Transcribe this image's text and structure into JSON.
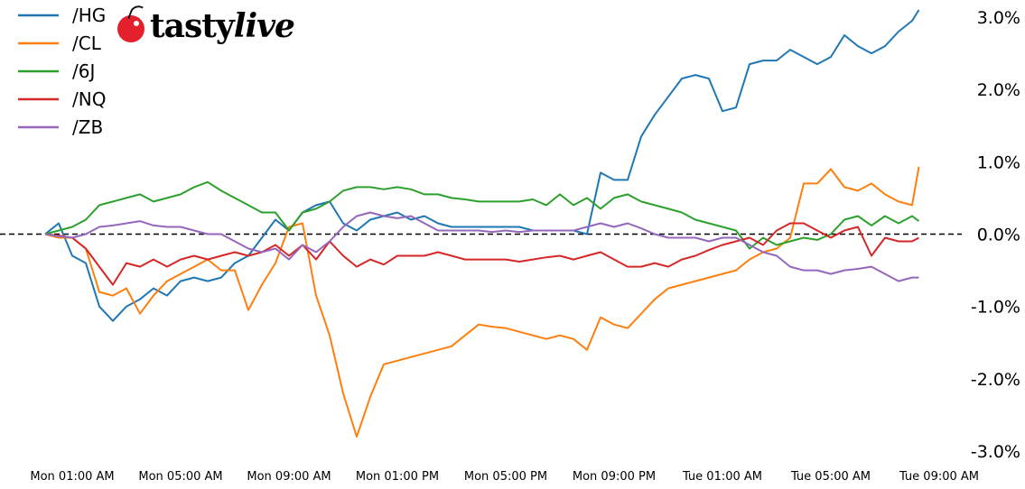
{
  "logo": {
    "text_a": "tasty",
    "text_b": "live",
    "color": "#e3202b"
  },
  "chart_data": {
    "type": "line",
    "title": "",
    "xlabel": "",
    "ylabel": "",
    "ylim": [
      -3.0,
      3.0
    ],
    "y_unit": "%",
    "y_ticks": [
      "3.0%",
      "2.0%",
      "1.0%",
      "0.0%",
      "-1.0%",
      "-2.0%",
      "-3.0%"
    ],
    "y_tick_values": [
      3,
      2,
      1,
      0,
      -1,
      -2,
      -3
    ],
    "x_ticks": [
      "Mon 01:00 AM",
      "Mon 05:00 AM",
      "Mon 09:00 AM",
      "Mon 01:00 PM",
      "Mon 05:00 PM",
      "Mon 09:00 PM",
      "Tue 01:00 AM",
      "Tue 05:00 AM",
      "Tue 09:00 AM"
    ],
    "x_tick_times": [
      "Mon 01:00",
      "Mon 05:00",
      "Mon 09:00",
      "Mon 13:00",
      "Mon 17:00",
      "Mon 21:00",
      "Tue 01:00",
      "Tue 05:00",
      "Tue 09:00"
    ],
    "xlim": [
      "Mon 00:00",
      "Tue 09:00"
    ],
    "y_axis_side": "right",
    "grid": false,
    "reference_line": {
      "value": 0,
      "style": "dashed",
      "color": "#000000"
    },
    "legend": "top-left",
    "x": [
      "Mon 00:00",
      "Mon 00:30",
      "Mon 01:00",
      "Mon 01:30",
      "Mon 02:00",
      "Mon 02:30",
      "Mon 03:00",
      "Mon 03:30",
      "Mon 04:00",
      "Mon 04:30",
      "Mon 05:00",
      "Mon 05:30",
      "Mon 06:00",
      "Mon 06:30",
      "Mon 07:00",
      "Mon 07:30",
      "Mon 08:00",
      "Mon 08:30",
      "Mon 09:00",
      "Mon 09:30",
      "Mon 10:00",
      "Mon 10:30",
      "Mon 11:00",
      "Mon 11:30",
      "Mon 12:00",
      "Mon 12:30",
      "Mon 13:00",
      "Mon 13:30",
      "Mon 14:00",
      "Mon 14:30",
      "Mon 15:00",
      "Mon 15:30",
      "Mon 16:00",
      "Mon 16:30",
      "Mon 17:00",
      "Mon 17:30",
      "Mon 18:00",
      "Mon 18:30",
      "Mon 19:00",
      "Mon 19:30",
      "Mon 20:00",
      "Mon 20:30",
      "Mon 21:00",
      "Mon 21:30",
      "Mon 22:00",
      "Mon 22:30",
      "Mon 23:00",
      "Mon 23:30",
      "Tue 00:00",
      "Tue 00:30",
      "Tue 01:00",
      "Tue 01:30",
      "Tue 02:00",
      "Tue 02:30",
      "Tue 03:00",
      "Tue 03:30",
      "Tue 04:00",
      "Tue 04:30",
      "Tue 05:00",
      "Tue 05:30",
      "Tue 06:00",
      "Tue 06:30",
      "Tue 07:00",
      "Tue 07:30",
      "Tue 08:00",
      "Tue 08:15"
    ],
    "series": [
      {
        "name": "/HG",
        "color": "#1f77b4",
        "values": [
          0,
          0.15,
          -0.3,
          -0.4,
          -1.0,
          -1.2,
          -1.0,
          -0.9,
          -0.75,
          -0.85,
          -0.65,
          -0.6,
          -0.65,
          -0.6,
          -0.4,
          -0.3,
          -0.05,
          0.2,
          0.05,
          0.3,
          0.4,
          0.45,
          0.15,
          0.05,
          0.2,
          0.25,
          0.3,
          0.2,
          0.25,
          0.15,
          0.1,
          0.1,
          0.1,
          0.1,
          0.1,
          0.1,
          0.05,
          0.05,
          0.05,
          0.05,
          0.0,
          0.85,
          0.75,
          0.75,
          1.35,
          1.65,
          1.9,
          2.15,
          2.2,
          2.15,
          1.7,
          1.75,
          2.35,
          2.4,
          2.4,
          2.55,
          2.45,
          2.35,
          2.45,
          2.75,
          2.6,
          2.5,
          2.6,
          2.8,
          2.95,
          3.1
        ]
      },
      {
        "name": "/CL",
        "color": "#ff7f0e",
        "values": [
          0,
          -0.05,
          -0.05,
          -0.2,
          -0.8,
          -0.85,
          -0.75,
          -1.1,
          -0.85,
          -0.65,
          -0.55,
          -0.45,
          -0.35,
          -0.5,
          -0.5,
          -1.05,
          -0.7,
          -0.4,
          0.1,
          0.15,
          -0.85,
          -1.4,
          -2.2,
          -2.8,
          -2.25,
          -1.8,
          -1.75,
          -1.7,
          -1.65,
          -1.6,
          -1.55,
          -1.4,
          -1.25,
          -1.28,
          -1.3,
          -1.35,
          -1.4,
          -1.45,
          -1.4,
          -1.45,
          -1.6,
          -1.15,
          -1.25,
          -1.3,
          -1.1,
          -0.9,
          -0.75,
          -0.7,
          -0.65,
          -0.6,
          -0.55,
          -0.5,
          -0.35,
          -0.25,
          -0.2,
          -0.05,
          0.7,
          0.7,
          0.9,
          0.65,
          0.6,
          0.7,
          0.55,
          0.45,
          0.4,
          0.93
        ]
      },
      {
        "name": "/6J",
        "color": "#2ca02c",
        "values": [
          0,
          0.05,
          0.1,
          0.2,
          0.4,
          0.45,
          0.5,
          0.55,
          0.45,
          0.5,
          0.55,
          0.65,
          0.72,
          0.6,
          0.5,
          0.4,
          0.3,
          0.3,
          0.05,
          0.3,
          0.35,
          0.45,
          0.6,
          0.65,
          0.65,
          0.62,
          0.65,
          0.62,
          0.55,
          0.55,
          0.5,
          0.48,
          0.45,
          0.45,
          0.45,
          0.45,
          0.48,
          0.4,
          0.55,
          0.4,
          0.5,
          0.35,
          0.5,
          0.55,
          0.45,
          0.4,
          0.35,
          0.3,
          0.2,
          0.15,
          0.1,
          0.05,
          -0.2,
          -0.05,
          -0.15,
          -0.1,
          -0.05,
          -0.08,
          0.0,
          0.2,
          0.25,
          0.12,
          0.25,
          0.15,
          0.25,
          0.18
        ]
      },
      {
        "name": "/NQ",
        "color": "#d62728",
        "values": [
          0,
          -0.02,
          -0.05,
          -0.2,
          -0.45,
          -0.7,
          -0.4,
          -0.45,
          -0.35,
          -0.45,
          -0.35,
          -0.3,
          -0.35,
          -0.3,
          -0.25,
          -0.3,
          -0.25,
          -0.15,
          -0.3,
          -0.15,
          -0.35,
          -0.1,
          -0.3,
          -0.45,
          -0.35,
          -0.42,
          -0.3,
          -0.3,
          -0.3,
          -0.25,
          -0.3,
          -0.35,
          -0.35,
          -0.35,
          -0.35,
          -0.38,
          -0.35,
          -0.32,
          -0.3,
          -0.35,
          -0.3,
          -0.25,
          -0.35,
          -0.45,
          -0.45,
          -0.4,
          -0.45,
          -0.35,
          -0.3,
          -0.22,
          -0.15,
          -0.1,
          -0.05,
          -0.15,
          0.05,
          0.15,
          0.15,
          0.05,
          -0.05,
          0.05,
          0.1,
          -0.3,
          -0.05,
          -0.1,
          -0.1,
          -0.05
        ]
      },
      {
        "name": "/ZB",
        "color": "#9467bd",
        "values": [
          0,
          -0.03,
          -0.05,
          0.0,
          0.1,
          0.12,
          0.15,
          0.18,
          0.12,
          0.1,
          0.1,
          0.05,
          0.0,
          0.0,
          -0.1,
          -0.2,
          -0.25,
          -0.2,
          -0.35,
          -0.15,
          -0.25,
          -0.1,
          0.1,
          0.25,
          0.3,
          0.25,
          0.22,
          0.25,
          0.15,
          0.05,
          0.05,
          0.05,
          0.05,
          0.03,
          0.05,
          0.03,
          0.05,
          0.05,
          0.05,
          0.05,
          0.1,
          0.15,
          0.1,
          0.15,
          0.08,
          0.0,
          -0.05,
          -0.05,
          -0.05,
          -0.1,
          -0.05,
          -0.05,
          -0.15,
          -0.25,
          -0.3,
          -0.45,
          -0.5,
          -0.5,
          -0.55,
          -0.5,
          -0.48,
          -0.45,
          -0.55,
          -0.65,
          -0.6,
          -0.6
        ]
      }
    ]
  }
}
